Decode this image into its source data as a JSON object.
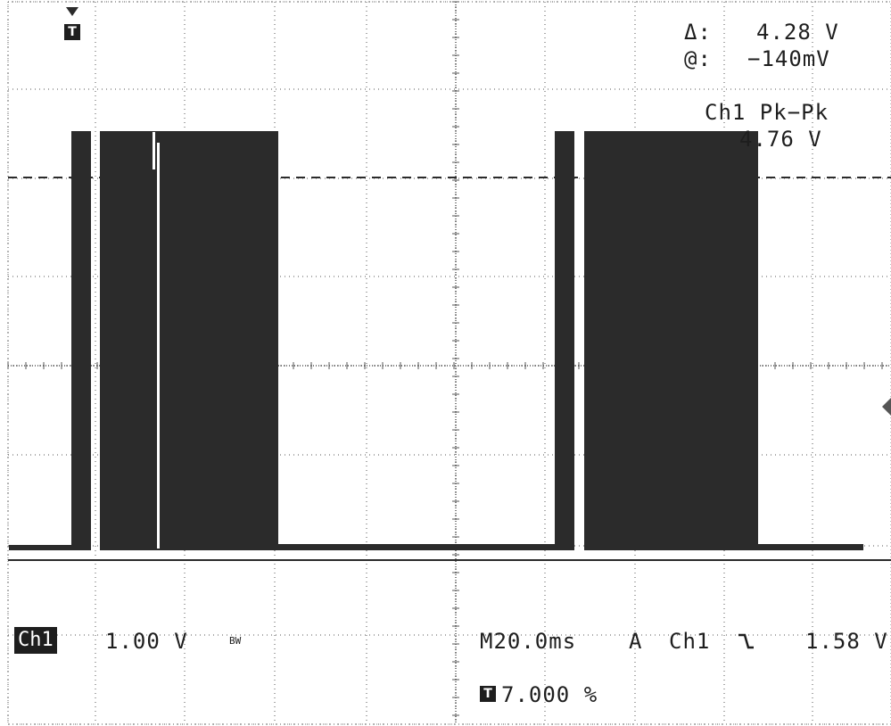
{
  "measurement": {
    "delta_label": "Δ:",
    "delta_value": "4.28 V",
    "at_label": "@:",
    "at_value": "−140mV",
    "pkpk_label": "Ch1 Pk−Pk",
    "pkpk_value": "4.76 V"
  },
  "status": {
    "channel_badge": "Ch1",
    "volts_per_div": "1.00 V",
    "bw_mark": "BW",
    "timebase": "M20.0ms",
    "trigger_mode": "A",
    "trigger_source": "Ch1",
    "trigger_slope_icon": "falling-edge-icon",
    "trigger_level": "1.58 V",
    "trigger_position_glyph": "T",
    "trigger_position": "7.000 %"
  },
  "markers": {
    "trigger_marker_glyph": "T"
  },
  "colors": {
    "background": "#ffffff",
    "trace": "#2b2b2b",
    "graticule": "#555555",
    "text": "#1e1e1e"
  }
}
